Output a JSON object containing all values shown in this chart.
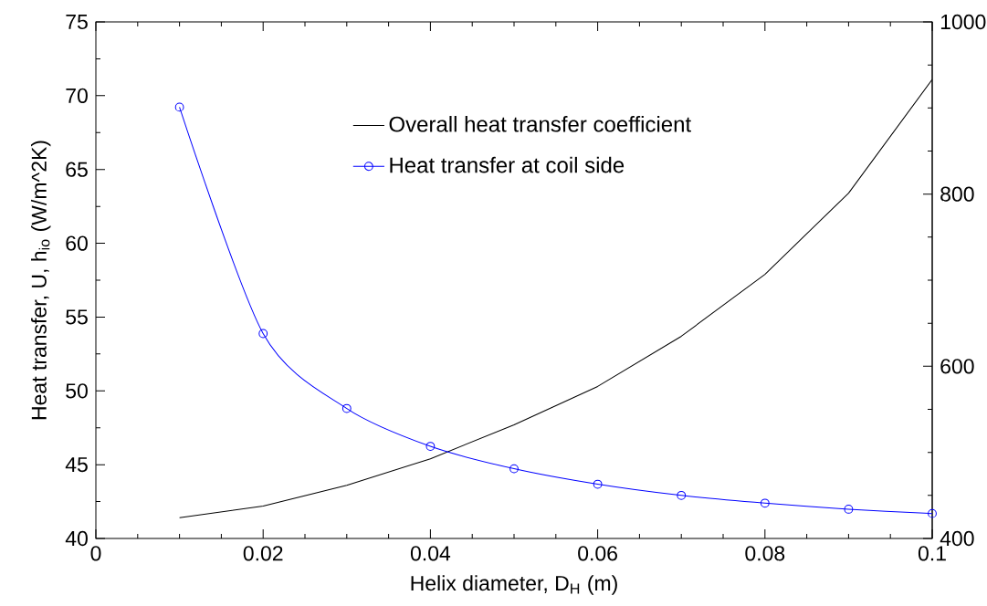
{
  "chart_data": {
    "type": "line",
    "xlabel": "Helix diameter, D$_{H}$ (m)",
    "ylabel": "Heat transfer, U, h$_{io}$ (W/m^2K)",
    "x": [
      0.01,
      0.02,
      0.03,
      0.04,
      0.05,
      0.06,
      0.07,
      0.08,
      0.09,
      0.1
    ],
    "series": [
      {
        "name": "Overall heat transfer coefficient",
        "color": "#000000",
        "marker": "none",
        "values": [
          41.4,
          42.2,
          43.6,
          45.4,
          47.7,
          50.3,
          53.7,
          57.9,
          63.4,
          71.1
        ]
      },
      {
        "name": "Heat transfer at coil side",
        "color": "#0000ff",
        "marker": "circle",
        "axis": "y2",
        "values": [
          901,
          638,
          551,
          507,
          481,
          463,
          450,
          441,
          434,
          429
        ]
      }
    ],
    "xlim": [
      0,
      0.1
    ],
    "xticks": [
      0,
      0.02,
      0.04,
      0.06,
      0.08,
      0.1
    ],
    "ylim": [
      40,
      75
    ],
    "yticks": [
      40,
      45,
      50,
      55,
      60,
      65,
      70,
      75
    ],
    "y2lim": [
      400,
      1000
    ],
    "y2ticks": [
      400,
      600,
      800,
      1000
    ],
    "legend": "top left",
    "grid": false
  }
}
